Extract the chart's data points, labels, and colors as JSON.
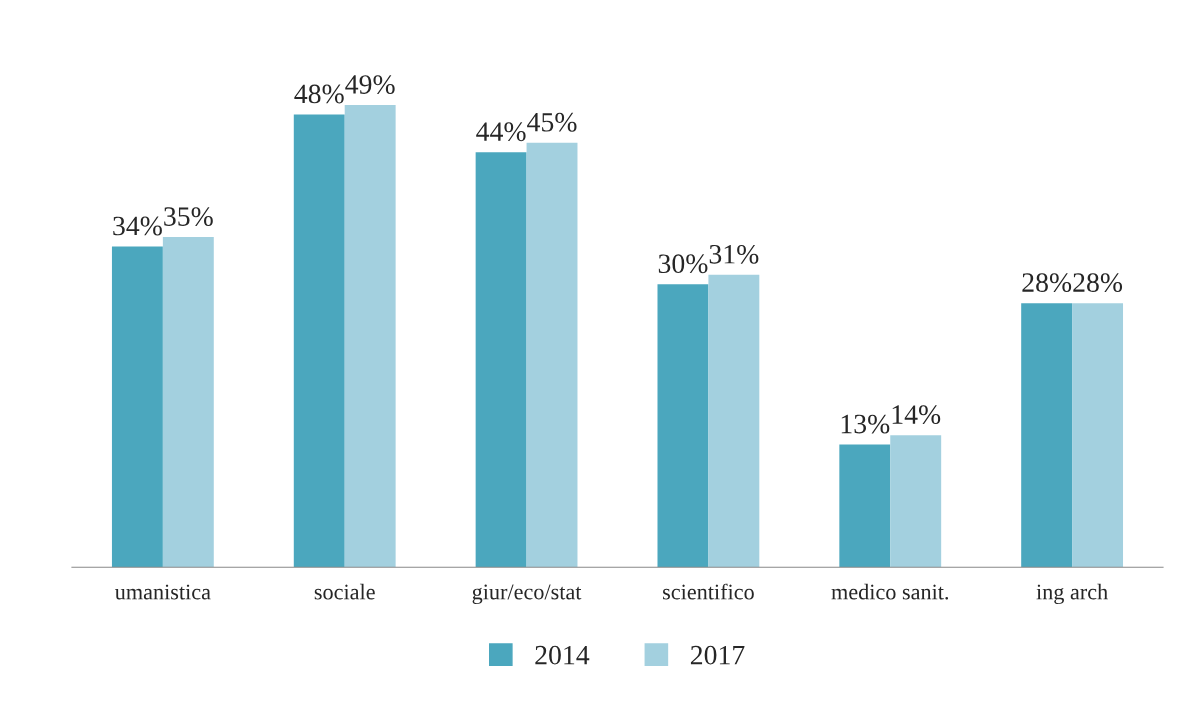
{
  "chart_data": {
    "type": "bar",
    "categories": [
      "umanistica",
      "sociale",
      "giur/eco/stat",
      "scientifico",
      "medico sanit.",
      "ing arch"
    ],
    "series": [
      {
        "name": "2014",
        "color": "#4ba7be",
        "values": [
          34,
          48,
          44,
          30,
          13,
          28
        ],
        "value_labels": [
          "34%",
          "48%",
          "44%",
          "30%",
          "13%",
          "28%"
        ]
      },
      {
        "name": "2017",
        "color": "#a3d0df",
        "values": [
          35,
          49,
          45,
          31,
          14,
          28
        ],
        "value_labels": [
          "35%",
          "49%",
          "45%",
          "31%",
          "14%",
          "28%"
        ]
      }
    ],
    "tick_labels": "x",
    "grid": false,
    "legend": "bottom"
  }
}
